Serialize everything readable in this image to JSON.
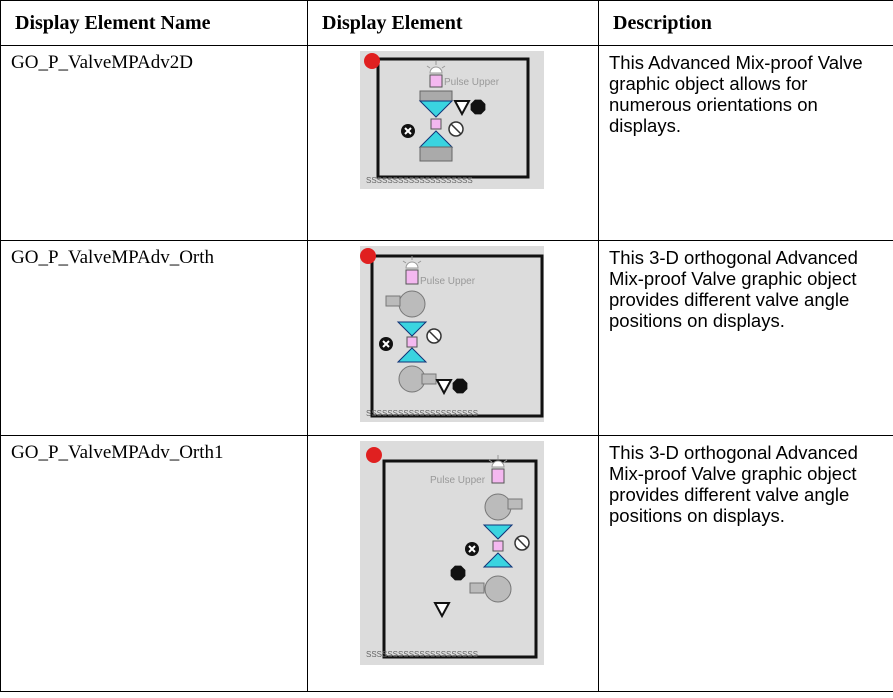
{
  "table": {
    "header": [
      "Display Element Name",
      "Display Element",
      "Description"
    ],
    "rows": [
      {
        "name": "GO_P_ValveMPAdv2D",
        "graphic_label": "Pulse Upper",
        "graphic_strip": "SSSSSSSSSSSSSSSSSSSS",
        "description": "This Advanced Mix-proof Valve graphic object allows for numerous orientations on displays."
      },
      {
        "name": "GO_P_ValveMPAdv_Orth",
        "graphic_label": "Pulse Upper",
        "graphic_strip": "SSSSSSSSSSSSSSSSSSSSS",
        "description": "This 3-D orthogonal Advanced Mix-proof Valve graphic object provides different valve angle positions on displays."
      },
      {
        "name": "GO_P_ValveMPAdv_Orth1",
        "graphic_label": "Pulse Upper",
        "graphic_strip": "SSSSSSSSSSSSSSSSSSSSS",
        "description": "This 3-D orthogonal Advanced Mix-proof Valve graphic object provides different valve angle positions on displays."
      }
    ]
  }
}
